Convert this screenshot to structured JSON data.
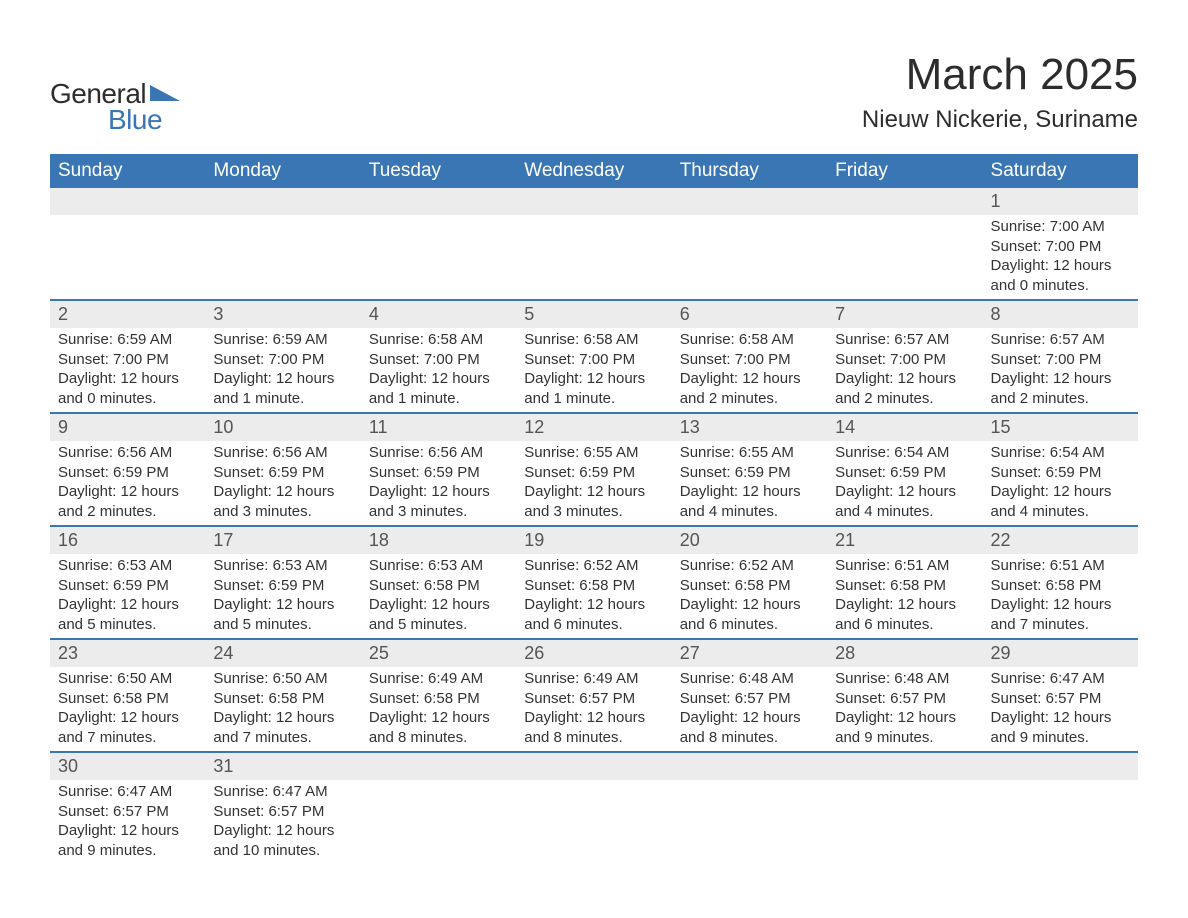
{
  "logo": {
    "text_general": "General",
    "text_blue": "Blue",
    "icon_color": "#3a76b4"
  },
  "title": "March 2025",
  "location": "Nieuw Nickerie, Suriname",
  "colors": {
    "header_bg": "#3a76b4",
    "header_text": "#ffffff",
    "daynum_bg": "#ececec",
    "text": "#333333",
    "row_border": "#3a76b4",
    "background": "#ffffff"
  },
  "typography": {
    "title_fontsize": 44,
    "location_fontsize": 24,
    "header_fontsize": 19,
    "daynum_fontsize": 18,
    "body_fontsize": 15,
    "logo_fontsize": 28,
    "font_family": "Arial"
  },
  "weekday_labels": [
    "Sunday",
    "Monday",
    "Tuesday",
    "Wednesday",
    "Thursday",
    "Friday",
    "Saturday"
  ],
  "weeks": [
    [
      {
        "day": "",
        "sunrise": "",
        "sunset": "",
        "daylight": ""
      },
      {
        "day": "",
        "sunrise": "",
        "sunset": "",
        "daylight": ""
      },
      {
        "day": "",
        "sunrise": "",
        "sunset": "",
        "daylight": ""
      },
      {
        "day": "",
        "sunrise": "",
        "sunset": "",
        "daylight": ""
      },
      {
        "day": "",
        "sunrise": "",
        "sunset": "",
        "daylight": ""
      },
      {
        "day": "",
        "sunrise": "",
        "sunset": "",
        "daylight": ""
      },
      {
        "day": "1",
        "sunrise": "Sunrise: 7:00 AM",
        "sunset": "Sunset: 7:00 PM",
        "daylight": "Daylight: 12 hours and 0 minutes."
      }
    ],
    [
      {
        "day": "2",
        "sunrise": "Sunrise: 6:59 AM",
        "sunset": "Sunset: 7:00 PM",
        "daylight": "Daylight: 12 hours and 0 minutes."
      },
      {
        "day": "3",
        "sunrise": "Sunrise: 6:59 AM",
        "sunset": "Sunset: 7:00 PM",
        "daylight": "Daylight: 12 hours and 1 minute."
      },
      {
        "day": "4",
        "sunrise": "Sunrise: 6:58 AM",
        "sunset": "Sunset: 7:00 PM",
        "daylight": "Daylight: 12 hours and 1 minute."
      },
      {
        "day": "5",
        "sunrise": "Sunrise: 6:58 AM",
        "sunset": "Sunset: 7:00 PM",
        "daylight": "Daylight: 12 hours and 1 minute."
      },
      {
        "day": "6",
        "sunrise": "Sunrise: 6:58 AM",
        "sunset": "Sunset: 7:00 PM",
        "daylight": "Daylight: 12 hours and 2 minutes."
      },
      {
        "day": "7",
        "sunrise": "Sunrise: 6:57 AM",
        "sunset": "Sunset: 7:00 PM",
        "daylight": "Daylight: 12 hours and 2 minutes."
      },
      {
        "day": "8",
        "sunrise": "Sunrise: 6:57 AM",
        "sunset": "Sunset: 7:00 PM",
        "daylight": "Daylight: 12 hours and 2 minutes."
      }
    ],
    [
      {
        "day": "9",
        "sunrise": "Sunrise: 6:56 AM",
        "sunset": "Sunset: 6:59 PM",
        "daylight": "Daylight: 12 hours and 2 minutes."
      },
      {
        "day": "10",
        "sunrise": "Sunrise: 6:56 AM",
        "sunset": "Sunset: 6:59 PM",
        "daylight": "Daylight: 12 hours and 3 minutes."
      },
      {
        "day": "11",
        "sunrise": "Sunrise: 6:56 AM",
        "sunset": "Sunset: 6:59 PM",
        "daylight": "Daylight: 12 hours and 3 minutes."
      },
      {
        "day": "12",
        "sunrise": "Sunrise: 6:55 AM",
        "sunset": "Sunset: 6:59 PM",
        "daylight": "Daylight: 12 hours and 3 minutes."
      },
      {
        "day": "13",
        "sunrise": "Sunrise: 6:55 AM",
        "sunset": "Sunset: 6:59 PM",
        "daylight": "Daylight: 12 hours and 4 minutes."
      },
      {
        "day": "14",
        "sunrise": "Sunrise: 6:54 AM",
        "sunset": "Sunset: 6:59 PM",
        "daylight": "Daylight: 12 hours and 4 minutes."
      },
      {
        "day": "15",
        "sunrise": "Sunrise: 6:54 AM",
        "sunset": "Sunset: 6:59 PM",
        "daylight": "Daylight: 12 hours and 4 minutes."
      }
    ],
    [
      {
        "day": "16",
        "sunrise": "Sunrise: 6:53 AM",
        "sunset": "Sunset: 6:59 PM",
        "daylight": "Daylight: 12 hours and 5 minutes."
      },
      {
        "day": "17",
        "sunrise": "Sunrise: 6:53 AM",
        "sunset": "Sunset: 6:59 PM",
        "daylight": "Daylight: 12 hours and 5 minutes."
      },
      {
        "day": "18",
        "sunrise": "Sunrise: 6:53 AM",
        "sunset": "Sunset: 6:58 PM",
        "daylight": "Daylight: 12 hours and 5 minutes."
      },
      {
        "day": "19",
        "sunrise": "Sunrise: 6:52 AM",
        "sunset": "Sunset: 6:58 PM",
        "daylight": "Daylight: 12 hours and 6 minutes."
      },
      {
        "day": "20",
        "sunrise": "Sunrise: 6:52 AM",
        "sunset": "Sunset: 6:58 PM",
        "daylight": "Daylight: 12 hours and 6 minutes."
      },
      {
        "day": "21",
        "sunrise": "Sunrise: 6:51 AM",
        "sunset": "Sunset: 6:58 PM",
        "daylight": "Daylight: 12 hours and 6 minutes."
      },
      {
        "day": "22",
        "sunrise": "Sunrise: 6:51 AM",
        "sunset": "Sunset: 6:58 PM",
        "daylight": "Daylight: 12 hours and 7 minutes."
      }
    ],
    [
      {
        "day": "23",
        "sunrise": "Sunrise: 6:50 AM",
        "sunset": "Sunset: 6:58 PM",
        "daylight": "Daylight: 12 hours and 7 minutes."
      },
      {
        "day": "24",
        "sunrise": "Sunrise: 6:50 AM",
        "sunset": "Sunset: 6:58 PM",
        "daylight": "Daylight: 12 hours and 7 minutes."
      },
      {
        "day": "25",
        "sunrise": "Sunrise: 6:49 AM",
        "sunset": "Sunset: 6:58 PM",
        "daylight": "Daylight: 12 hours and 8 minutes."
      },
      {
        "day": "26",
        "sunrise": "Sunrise: 6:49 AM",
        "sunset": "Sunset: 6:57 PM",
        "daylight": "Daylight: 12 hours and 8 minutes."
      },
      {
        "day": "27",
        "sunrise": "Sunrise: 6:48 AM",
        "sunset": "Sunset: 6:57 PM",
        "daylight": "Daylight: 12 hours and 8 minutes."
      },
      {
        "day": "28",
        "sunrise": "Sunrise: 6:48 AM",
        "sunset": "Sunset: 6:57 PM",
        "daylight": "Daylight: 12 hours and 9 minutes."
      },
      {
        "day": "29",
        "sunrise": "Sunrise: 6:47 AM",
        "sunset": "Sunset: 6:57 PM",
        "daylight": "Daylight: 12 hours and 9 minutes."
      }
    ],
    [
      {
        "day": "30",
        "sunrise": "Sunrise: 6:47 AM",
        "sunset": "Sunset: 6:57 PM",
        "daylight": "Daylight: 12 hours and 9 minutes."
      },
      {
        "day": "31",
        "sunrise": "Sunrise: 6:47 AM",
        "sunset": "Sunset: 6:57 PM",
        "daylight": "Daylight: 12 hours and 10 minutes."
      },
      {
        "day": "",
        "sunrise": "",
        "sunset": "",
        "daylight": ""
      },
      {
        "day": "",
        "sunrise": "",
        "sunset": "",
        "daylight": ""
      },
      {
        "day": "",
        "sunrise": "",
        "sunset": "",
        "daylight": ""
      },
      {
        "day": "",
        "sunrise": "",
        "sunset": "",
        "daylight": ""
      },
      {
        "day": "",
        "sunrise": "",
        "sunset": "",
        "daylight": ""
      }
    ]
  ]
}
